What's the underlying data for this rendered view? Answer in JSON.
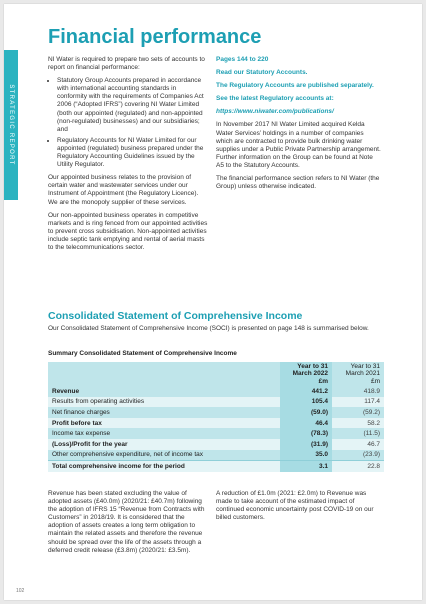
{
  "side_tab": "STRATEGIC REPORT",
  "title": "Financial performance",
  "col1": {
    "p1": "NI Water is required to prepare two sets of accounts to report on financial performance:",
    "bullets": [
      "Statutory Group Accounts prepared in accordance with international accounting standards in conformity with the requirements of Companies Act 2006 (“Adopted IFRS”) covering NI Water Limited (both our appointed (regulated) and non-appointed (non-regulated) businesses) and our subsidiaries; and",
      "Regulatory Accounts for NI Water Limited for our appointed (regulated) business prepared under the Regulatory Accounting Guidelines issued by the Utility Regulator."
    ],
    "p2": "Our appointed business relates to the provision of certain water and wastewater services under our Instrument of Appointment (the Regulatory Licence). We are the monopoly supplier of these services.",
    "p3": "Our non-appointed business operates in competitive markets and is ring fenced from our appointed activities to prevent cross subsidisation. Non-appointed activities include septic tank emptying and rental of aerial masts to the telecommunications sector."
  },
  "col2": {
    "h1": "Pages 144 to 220",
    "h2": "Read our Statutory Accounts.",
    "h3": "The Regulatory Accounts are published separately.",
    "h4": "See the latest Regulatory accounts at:",
    "link": "https://www.niwater.com/publications/",
    "p1": "In November 2017 NI Water Limited acquired Kelda Water Services’ holdings in a number of companies which are contracted to provide bulk drinking water supplies under a Public Private Partnership arrangement. Further information on the Group can be found at Note A5 to the Statutory Accounts.",
    "p2": "The financial performance section refers to NI Water (the Group) unless otherwise indicated."
  },
  "section": {
    "title": "Consolidated Statement of Comprehensive Income",
    "intro": "Our Consolidated Statement of Comprehensive Income (SOCI) is presented on page 148 is summarised below.",
    "table_title": "Summary Consolidated Statement of Comprehensive Income"
  },
  "table": {
    "col_2022": [
      "Year to 31",
      "March 2022",
      "£m"
    ],
    "col_2021": [
      "Year to 31",
      "March 2021",
      "£m"
    ],
    "rows": [
      {
        "label": "Revenue",
        "y2022": "441.2",
        "y2021": "418.9",
        "bold": true,
        "shade": "dark"
      },
      {
        "label": "Results from operating activities",
        "y2022": "105.4",
        "y2021": "117.4",
        "bold": false,
        "shade": "light"
      },
      {
        "label": "Net finance charges",
        "y2022": "(59.0)",
        "y2021": "(59.2)",
        "bold": false,
        "shade": "dark"
      },
      {
        "label": "Profit before tax",
        "y2022": "46.4",
        "y2021": "58.2",
        "bold": true,
        "shade": "light"
      },
      {
        "label": "Income tax expense",
        "y2022": "(78.3)",
        "y2021": "(11.5)",
        "bold": false,
        "shade": "dark"
      },
      {
        "label": "(Loss)/Profit for the year",
        "y2022": "(31.9)",
        "y2021": "46.7",
        "bold": true,
        "shade": "light"
      },
      {
        "label": "Other comprehensive expenditure, net of income tax",
        "y2022": "35.0",
        "y2021": "(23.9)",
        "bold": false,
        "shade": "dark"
      },
      {
        "label": "Total comprehensive income for the period",
        "y2022": "3.1",
        "y2021": "22.8",
        "bold": true,
        "shade": "light"
      }
    ]
  },
  "footer": {
    "p1": "Revenue has been stated excluding the value of adopted assets (£40.0m) (2020/21: £40.7m) following the adoption of IFRS 15 “Revenue from Contracts with Customers” in 2018/19. It is considered that the adoption of assets creates a long term obligation to maintain the related assets and therefore the revenue should be spread over the life of the assets through a deferred credit release (£3.8m) (2020/21: £3.5m).",
    "p2": "A reduction of £1.0m (2021: £2.0m) to Revenue was made to take account of the estimated impact of continued economic uncertainty post COVID-19 on our billed customers."
  },
  "page_number": "102",
  "colors": {
    "accent": "#1d9fb3",
    "tab": "#2bb3c0",
    "row_dark": "#bfe5ea",
    "row_light": "#e4f4f6"
  }
}
